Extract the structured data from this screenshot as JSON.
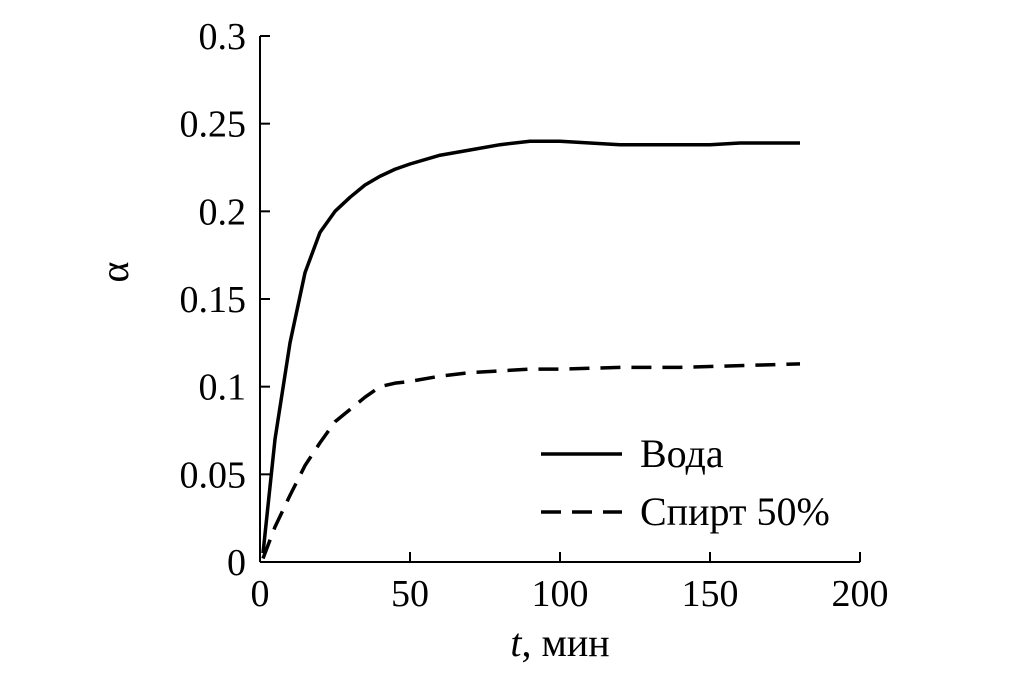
{
  "chart_data": {
    "type": "line",
    "title": "",
    "xlabel_italic": "t",
    "xlabel_rest": ", мин",
    "ylabel": "α",
    "xlim": [
      0,
      200
    ],
    "ylim": [
      0,
      0.3
    ],
    "x_ticks": [
      0,
      50,
      100,
      150,
      200
    ],
    "x_tick_labels": [
      "0",
      "50",
      "100",
      "150",
      "200"
    ],
    "y_ticks": [
      0,
      0.05,
      0.1,
      0.15,
      0.2,
      0.25,
      0.3
    ],
    "y_tick_labels": [
      "0",
      "0.05",
      "0.1",
      "0.15",
      "0.2",
      "0.25",
      "0.3"
    ],
    "grid": false,
    "legend_position": "bottom-right",
    "series": [
      {
        "name": "Вода",
        "style": "solid",
        "color": "#000000",
        "x": [
          1,
          5,
          10,
          15,
          20,
          25,
          30,
          35,
          40,
          45,
          50,
          60,
          70,
          80,
          90,
          100,
          110,
          120,
          130,
          140,
          150,
          160,
          170,
          180
        ],
        "y": [
          0.005,
          0.07,
          0.125,
          0.165,
          0.188,
          0.2,
          0.208,
          0.215,
          0.22,
          0.224,
          0.227,
          0.232,
          0.235,
          0.238,
          0.24,
          0.24,
          0.239,
          0.238,
          0.238,
          0.238,
          0.238,
          0.239,
          0.239,
          0.239
        ]
      },
      {
        "name": "Спирт 50%",
        "style": "dashed",
        "color": "#000000",
        "x": [
          1,
          5,
          10,
          15,
          20,
          25,
          30,
          35,
          40,
          45,
          50,
          60,
          70,
          80,
          90,
          100,
          120,
          140,
          160,
          180
        ],
        "y": [
          0.002,
          0.02,
          0.038,
          0.055,
          0.068,
          0.08,
          0.087,
          0.094,
          0.1,
          0.102,
          0.103,
          0.106,
          0.108,
          0.109,
          0.11,
          0.11,
          0.111,
          0.111,
          0.112,
          0.113
        ]
      }
    ]
  }
}
